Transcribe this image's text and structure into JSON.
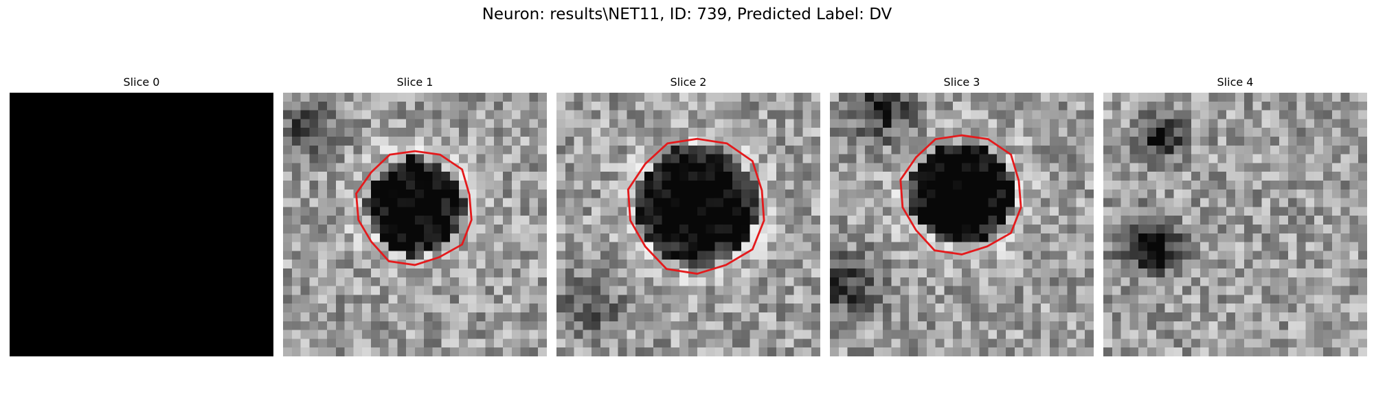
{
  "figure": {
    "title": "Neuron: results\\NET11, ID: 739, Predicted Label: DV",
    "contour_color": "#e41a1c"
  },
  "panels": [
    {
      "title": "Slice 0",
      "blank": true,
      "has_contour": false,
      "blob": null,
      "extra": []
    },
    {
      "title": "Slice 1",
      "blank": false,
      "has_contour": true,
      "blob": {
        "cx": 15.0,
        "cy": 13.0,
        "r": 5.7,
        "dark": 0.72
      },
      "extra": [
        {
          "cx": 3.0,
          "cy": 4.0,
          "r": 3.5,
          "dark": 0.35
        }
      ]
    },
    {
      "title": "Slice 2",
      "blank": false,
      "has_contour": true,
      "blob": {
        "cx": 16.0,
        "cy": 12.8,
        "r": 6.9,
        "dark": 0.75
      },
      "extra": [
        {
          "cx": 4.0,
          "cy": 24.0,
          "r": 3.0,
          "dark": 0.3
        }
      ]
    },
    {
      "title": "Slice 3",
      "blank": false,
      "has_contour": true,
      "blob": {
        "cx": 15.0,
        "cy": 11.5,
        "r": 6.0,
        "dark": 0.78
      },
      "extra": [
        {
          "cx": 6.0,
          "cy": 2.0,
          "r": 3.5,
          "dark": 0.45
        },
        {
          "cx": 2.0,
          "cy": 22.0,
          "r": 3.5,
          "dark": 0.4
        }
      ]
    },
    {
      "title": "Slice 4",
      "blank": false,
      "has_contour": false,
      "blob": null,
      "extra": [
        {
          "cx": 6.5,
          "cy": 5.0,
          "r": 2.5,
          "dark": 0.6
        },
        {
          "cx": 5.5,
          "cy": 17.5,
          "r": 3.0,
          "dark": 0.65
        }
      ]
    }
  ]
}
